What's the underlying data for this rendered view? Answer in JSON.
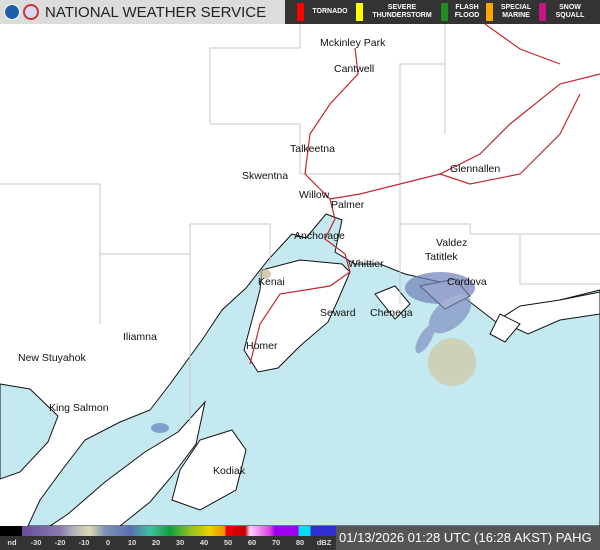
{
  "header": {
    "title": "NATIONAL WEATHER SERVICE",
    "logos": [
      "noaa-logo",
      "nws-logo"
    ]
  },
  "warnings": [
    {
      "label": "TORNADO",
      "color": "#ff0000"
    },
    {
      "label": "SEVERE THUNDERSTORM",
      "color": "#ffff00"
    },
    {
      "label": "FLASH FLOOD",
      "color": "#228b22"
    },
    {
      "label": "SPECIAL MARINE",
      "color": "#ffa500"
    },
    {
      "label": "SNOW SQUALL",
      "color": "#c71585"
    }
  ],
  "cities": [
    {
      "name": "Mckinley Park"
    },
    {
      "name": "Cantwell"
    },
    {
      "name": "Talkeetna"
    },
    {
      "name": "Skwentna"
    },
    {
      "name": "Glennallen"
    },
    {
      "name": "Willow"
    },
    {
      "name": "Palmer"
    },
    {
      "name": "Anchorage"
    },
    {
      "name": "Valdez"
    },
    {
      "name": "Tatitlek"
    },
    {
      "name": "Whittier"
    },
    {
      "name": "Kenai"
    },
    {
      "name": "Cordova"
    },
    {
      "name": "Seward"
    },
    {
      "name": "Chenega"
    },
    {
      "name": "Iliamna"
    },
    {
      "name": "Homer"
    },
    {
      "name": "New Stuyahok"
    },
    {
      "name": "King Salmon"
    },
    {
      "name": "Kodiak"
    }
  ],
  "legend": {
    "ticks": [
      "nd",
      "-30",
      "-20",
      "-10",
      "0",
      "10",
      "20",
      "30",
      "40",
      "50",
      "60",
      "70",
      "80",
      "dBZ"
    ]
  },
  "timestamp": "01/13/2026 01:28 UTC (16:28 AKST) PAHG",
  "colors": {
    "water": "#c5e9f0",
    "land": "#ffffff",
    "roads": "#c0282d",
    "boundaries": "#c8c8c8"
  }
}
